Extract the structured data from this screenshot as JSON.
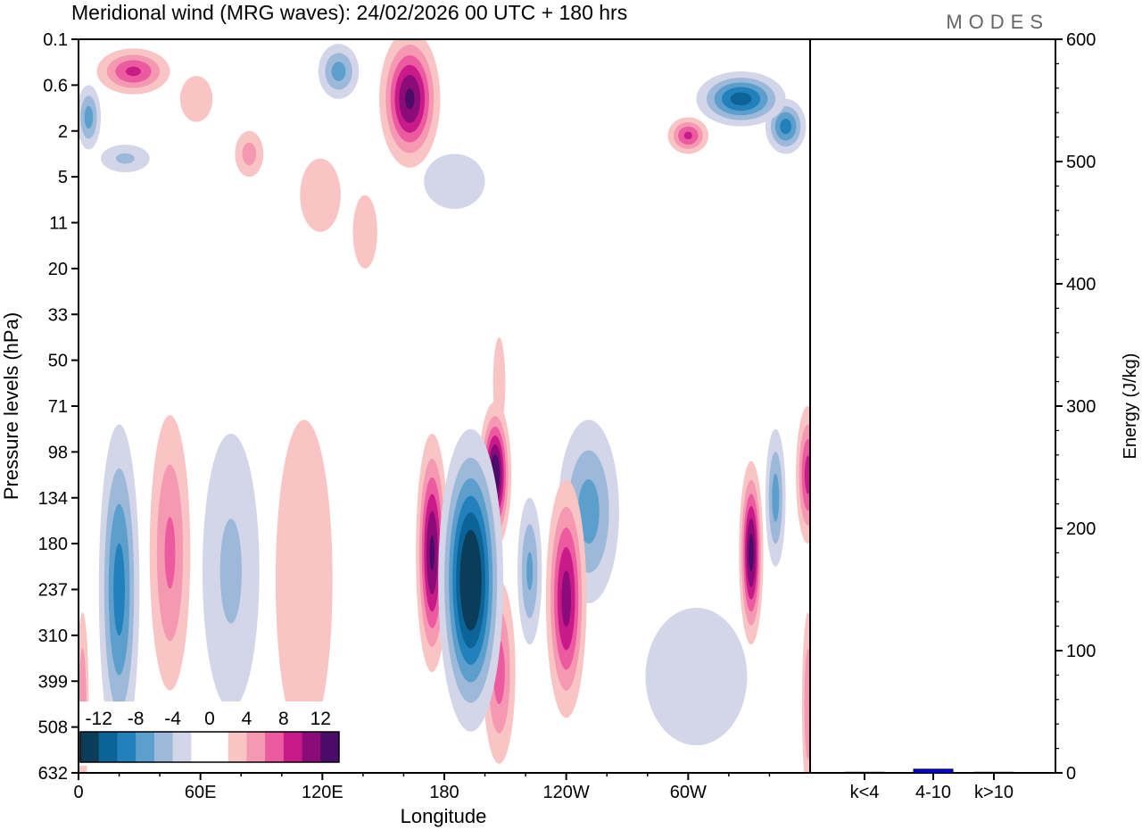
{
  "chart_data": {
    "type": "heatmap",
    "title": "Meridional wind (MRG waves):  24/02/2026  00 UTC  + 180 hrs",
    "logo": "MODES",
    "xlabel": "Longitude",
    "ylabel": "Pressure levels (hPa)",
    "x_ticks": [
      {
        "lon": 0,
        "label": "0"
      },
      {
        "lon": 60,
        "label": "60E"
      },
      {
        "lon": 120,
        "label": "120E"
      },
      {
        "lon": 180,
        "label": "180"
      },
      {
        "lon": 240,
        "label": "120W"
      },
      {
        "lon": 300,
        "label": "60W"
      }
    ],
    "xlim": [
      0,
      360
    ],
    "y_levels": [
      "0.1",
      "0.6",
      "2",
      "5",
      "11",
      "20",
      "33",
      "50",
      "71",
      "98",
      "134",
      "180",
      "237",
      "310",
      "399",
      "508",
      "632"
    ],
    "colorbar": {
      "labels": [
        "-12",
        "-8",
        "-4",
        "0",
        "4",
        "8",
        "12"
      ],
      "bounds": [
        -12,
        -10,
        -8,
        -6,
        -4,
        -2,
        0,
        2,
        4,
        6,
        8,
        10,
        12
      ],
      "colors": [
        "#0b3d58",
        "#0b6398",
        "#2280bb",
        "#5c9fcc",
        "#9cb9d9",
        "#d3d5e8",
        "#ffffff",
        "#ffffff",
        "#f9c4c4",
        "#f598b2",
        "#ec5a9f",
        "#c81b89",
        "#8b0b78",
        "#4b0b68"
      ]
    },
    "features": [
      {
        "lon": 193,
        "lev": 11.8,
        "rlon": 16,
        "rlev": 3.3,
        "v": -15
      },
      {
        "lon": 174,
        "lev": 11.2,
        "rlon": 8,
        "rlev": 2.6,
        "v": 12.5
      },
      {
        "lon": 205,
        "lev": 9.5,
        "rlon": 8,
        "rlev": 1.6,
        "v": 14
      },
      {
        "lon": 222,
        "lev": 11.6,
        "rlon": 6,
        "rlev": 1.6,
        "v": -6.5
      },
      {
        "lon": 240,
        "lev": 12.2,
        "rlon": 10,
        "rlev": 2.6,
        "v": 11
      },
      {
        "lon": 251,
        "lev": 10.3,
        "rlon": 15,
        "rlev": 2,
        "v": -7
      },
      {
        "lon": 207,
        "lev": 13.8,
        "rlon": 8,
        "rlev": 2,
        "v": 7
      },
      {
        "lon": 20,
        "lev": 12,
        "rlon": 10,
        "rlev": 3.6,
        "v": -9
      },
      {
        "lon": 45,
        "lev": 11.2,
        "rlon": 10,
        "rlev": 3,
        "v": 6.5
      },
      {
        "lon": 75,
        "lev": 11.6,
        "rlon": 14,
        "rlev": 3,
        "v": -4.5
      },
      {
        "lon": 111,
        "lev": 11.8,
        "rlon": 14,
        "rlev": 3.5,
        "v": 3
      },
      {
        "lon": 331,
        "lev": 11.2,
        "rlon": 6,
        "rlev": 2,
        "v": 13
      },
      {
        "lon": 343,
        "lev": 10,
        "rlon": 5,
        "rlev": 1.5,
        "v": -7
      },
      {
        "lon": 359,
        "lev": 9.5,
        "rlon": 6,
        "rlev": 1.5,
        "v": 9
      },
      {
        "lon": 2,
        "lev": 14.5,
        "rlon": 3,
        "rlev": 2,
        "v": 6
      },
      {
        "lon": 359,
        "lev": 14.5,
        "rlon": 3,
        "rlev": 2,
        "v": 6
      },
      {
        "lon": 304,
        "lev": 13.9,
        "rlon": 25,
        "rlev": 1.5,
        "v": -2.5
      },
      {
        "lon": 163,
        "lev": 1.3,
        "rlon": 15,
        "rlev": 1.5,
        "v": 12.5
      },
      {
        "lon": 27,
        "lev": 0.7,
        "rlon": 18,
        "rlev": 0.5,
        "v": 8.5
      },
      {
        "lon": 128,
        "lev": 0.7,
        "rlon": 10,
        "rlev": 0.6,
        "v": -7
      },
      {
        "lon": 326,
        "lev": 1.3,
        "rlon": 22,
        "rlev": 0.6,
        "v": -11
      },
      {
        "lon": 5,
        "lev": 1.7,
        "rlon": 6,
        "rlev": 0.7,
        "v": -7
      },
      {
        "lon": 300,
        "lev": 2.1,
        "rlon": 10,
        "rlev": 0.4,
        "v": 8.5
      },
      {
        "lon": 348,
        "lev": 1.9,
        "rlon": 10,
        "rlev": 0.6,
        "v": -9
      },
      {
        "lon": 84,
        "lev": 2.5,
        "rlon": 7,
        "rlev": 0.5,
        "v": 5
      },
      {
        "lon": 23,
        "lev": 2.6,
        "rlon": 12,
        "rlev": 0.3,
        "v": -4.5
      },
      {
        "lon": 119,
        "lev": 3.4,
        "rlon": 10,
        "rlev": 0.8,
        "v": 3
      },
      {
        "lon": 185,
        "lev": 3.1,
        "rlon": 15,
        "rlev": 0.6,
        "v": -3
      },
      {
        "lon": 207,
        "lev": 7.5,
        "rlon": 3,
        "rlev": 1,
        "v": 3
      },
      {
        "lon": 58,
        "lev": 1.3,
        "rlon": 8,
        "rlev": 0.5,
        "v": 3
      },
      {
        "lon": 141,
        "lev": 4.2,
        "rlon": 6,
        "rlev": 0.8,
        "v": 3
      }
    ],
    "energy_panel": {
      "ylabel": "Energy (J/kg)",
      "ylim": [
        0,
        600
      ],
      "y_ticks": [
        "0",
        "100",
        "200",
        "300",
        "400",
        "500",
        "600"
      ],
      "categories": [
        "k<4",
        "4-10",
        "k>10"
      ],
      "values": [
        0.5,
        3,
        0.5
      ],
      "bar_color": "#0000ff"
    }
  }
}
